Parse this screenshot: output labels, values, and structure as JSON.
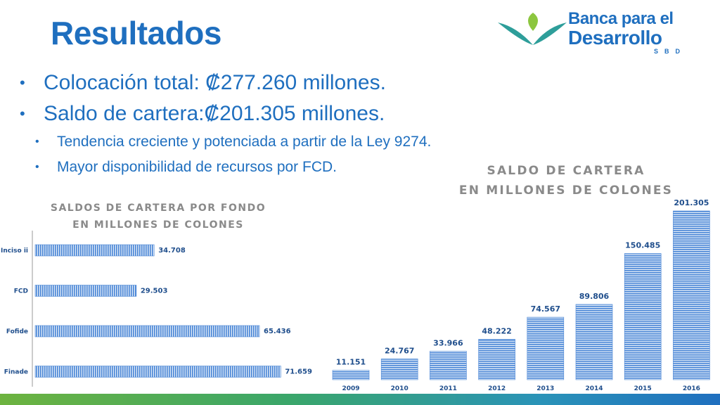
{
  "slide": {
    "title": "Resultados",
    "logo": {
      "line1": "Banca para el",
      "line2": "Desarrollo",
      "sub": "SBD"
    },
    "bullets": [
      "Colocación total: ₡277.260 millones.",
      "Saldo de cartera:₡201.305 millones."
    ],
    "subbullets": [
      "Tendencia creciente y potenciada a partir de la Ley 9274.",
      "Mayor disponibilidad de recursos por FCD."
    ]
  },
  "chart_data": [
    {
      "type": "bar",
      "orientation": "horizontal",
      "title": "SALDOS DE CARTERA POR FONDO\nEN MILLONES DE COLONES",
      "title_lines": [
        "SALDOS DE CARTERA POR FONDO",
        "EN MILLONES DE COLONES"
      ],
      "categories": [
        "Inciso ii",
        "FCD",
        "Fofide",
        "Finade"
      ],
      "values": [
        34708,
        29503,
        65436,
        71659
      ],
      "value_labels": [
        "34.708",
        "29.503",
        "65.436",
        "71.659"
      ],
      "xlim": [
        0,
        80000
      ],
      "grid": false,
      "legend": "none"
    },
    {
      "type": "bar",
      "orientation": "vertical",
      "title": "SALDO DE CARTERA\nEN MILLONES DE COLONES",
      "title_lines": [
        "SALDO DE CARTERA",
        "EN MILLONES DE COLONES"
      ],
      "categories": [
        "2009",
        "2010",
        "2011",
        "2012",
        "2013",
        "2014",
        "2015",
        "2016"
      ],
      "values": [
        11151,
        24767,
        33966,
        48222,
        74567,
        89806,
        150485,
        201305
      ],
      "value_labels": [
        "11.151",
        "24.767",
        "33.966",
        "48.222",
        "74.567",
        "89.806",
        "150.485",
        "201.305"
      ],
      "ylim": [
        0,
        201305
      ],
      "grid": false,
      "legend": "none"
    }
  ],
  "colors": {
    "title": "#1f6fbf",
    "bar": "#4a86d6",
    "label": "#1f4e8c",
    "chart_title": "#8a8a8a"
  }
}
